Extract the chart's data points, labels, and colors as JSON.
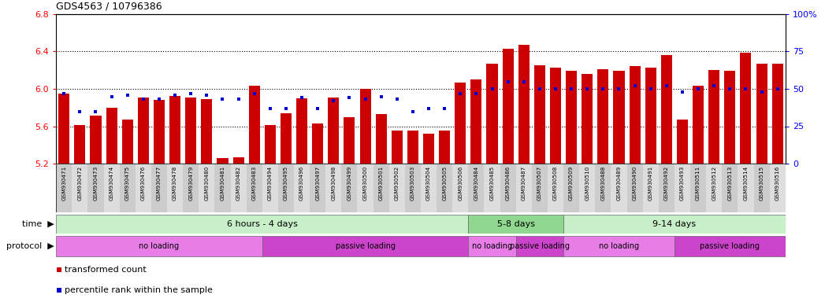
{
  "title": "GDS4563 / 10796386",
  "samples": [
    "GSM930471",
    "GSM930472",
    "GSM930473",
    "GSM930474",
    "GSM930475",
    "GSM930476",
    "GSM930477",
    "GSM930478",
    "GSM930479",
    "GSM930480",
    "GSM930481",
    "GSM930482",
    "GSM930483",
    "GSM930494",
    "GSM930495",
    "GSM930496",
    "GSM930497",
    "GSM930498",
    "GSM930499",
    "GSM930500",
    "GSM930501",
    "GSM930502",
    "GSM930503",
    "GSM930504",
    "GSM930505",
    "GSM930506",
    "GSM930484",
    "GSM930485",
    "GSM930486",
    "GSM930487",
    "GSM930507",
    "GSM930508",
    "GSM930509",
    "GSM930510",
    "GSM930488",
    "GSM930489",
    "GSM930490",
    "GSM930491",
    "GSM930492",
    "GSM930493",
    "GSM930511",
    "GSM930512",
    "GSM930513",
    "GSM930514",
    "GSM930515",
    "GSM930516"
  ],
  "bar_values": [
    5.95,
    5.61,
    5.71,
    5.8,
    5.67,
    5.91,
    5.88,
    5.92,
    5.91,
    5.89,
    5.26,
    5.27,
    6.03,
    5.61,
    5.74,
    5.9,
    5.63,
    5.91,
    5.7,
    6.0,
    5.73,
    5.55,
    5.55,
    5.52,
    5.55,
    6.07,
    6.1,
    6.27,
    6.43,
    6.47,
    6.25,
    6.23,
    6.19,
    6.16,
    6.21,
    6.19,
    6.24,
    6.23,
    6.36,
    5.67,
    6.03,
    6.2,
    6.19,
    6.39,
    6.27,
    6.27
  ],
  "percentile_values": [
    47,
    35,
    35,
    45,
    46,
    43,
    43,
    46,
    47,
    46,
    43,
    43,
    47,
    37,
    37,
    44,
    37,
    42,
    44,
    43,
    45,
    43,
    35,
    37,
    37,
    47,
    47,
    50,
    55,
    55,
    50,
    50,
    50,
    50,
    50,
    50,
    52,
    50,
    52,
    48,
    50,
    52,
    50,
    50,
    48,
    50
  ],
  "ylim": [
    5.2,
    6.8
  ],
  "yticks": [
    5.2,
    5.6,
    6.0,
    6.4,
    6.8
  ],
  "y2lim": [
    0,
    100
  ],
  "y2ticks": [
    0,
    25,
    50,
    75,
    100
  ],
  "bar_color": "#cc0000",
  "dot_color": "#0000cc",
  "bg_color": "#ffffff",
  "grid_color": "#000000",
  "time_groups": [
    {
      "label": "6 hours - 4 days",
      "start": 0,
      "end": 25,
      "color": "#c8f0c8"
    },
    {
      "label": "5-8 days",
      "start": 26,
      "end": 31,
      "color": "#90d890"
    },
    {
      "label": "9-14 days",
      "start": 32,
      "end": 45,
      "color": "#c8f0c8"
    }
  ],
  "protocol_groups": [
    {
      "label": "no loading",
      "start": 0,
      "end": 12,
      "color": "#e87de8"
    },
    {
      "label": "passive loading",
      "start": 13,
      "end": 25,
      "color": "#cc44cc"
    },
    {
      "label": "no loading",
      "start": 26,
      "end": 28,
      "color": "#e87de8"
    },
    {
      "label": "passive loading",
      "start": 29,
      "end": 31,
      "color": "#cc44cc"
    },
    {
      "label": "no loading",
      "start": 32,
      "end": 38,
      "color": "#e87de8"
    },
    {
      "label": "passive loading",
      "start": 39,
      "end": 45,
      "color": "#cc44cc"
    }
  ],
  "legend_items": [
    {
      "label": "transformed count",
      "color": "#cc0000"
    },
    {
      "label": "percentile rank within the sample",
      "color": "#0000cc"
    }
  ]
}
